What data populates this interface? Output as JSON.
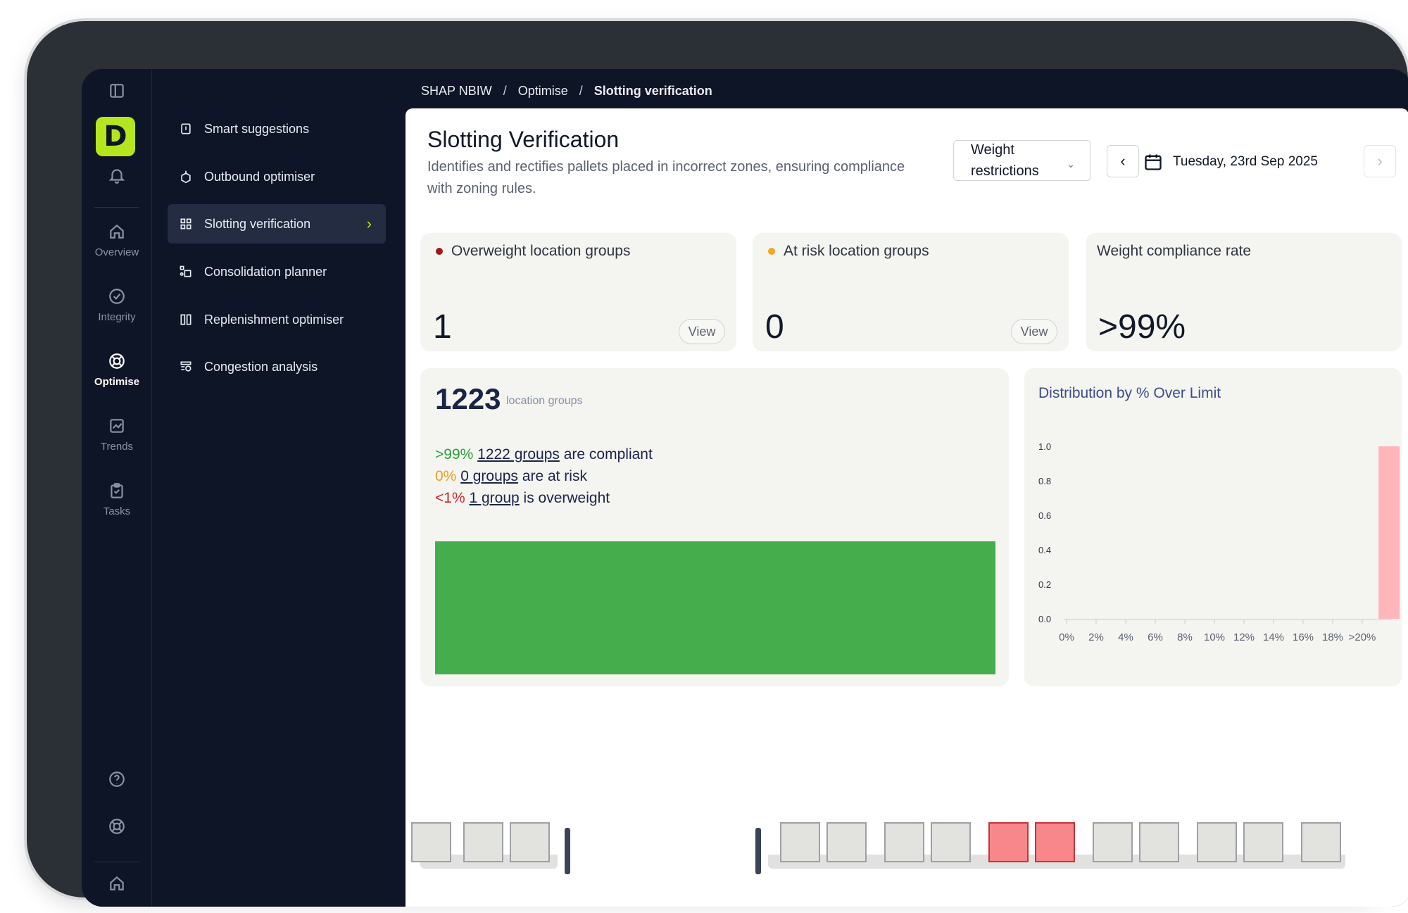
{
  "breadcrumb": {
    "site": "SHAP NBIW",
    "section": "Optimise",
    "current": "Slotting verification",
    "separator": "/"
  },
  "rail": {
    "logo_letter": "D",
    "items": [
      {
        "label": "Overview",
        "icon": "home-icon"
      },
      {
        "label": "Integrity",
        "icon": "check-circle-icon"
      },
      {
        "label": "Optimise",
        "icon": "optimise-icon"
      },
      {
        "label": "Trends",
        "icon": "trend-chart-icon"
      },
      {
        "label": "Tasks",
        "icon": "clipboard-icon"
      }
    ]
  },
  "submenu": {
    "items": [
      {
        "label": "Smart suggestions",
        "icon": "lightbulb-icon"
      },
      {
        "label": "Outbound optimiser",
        "icon": "box-arrow-icon"
      },
      {
        "label": "Slotting verification",
        "icon": "grid-icon",
        "active": true
      },
      {
        "label": "Consolidation planner",
        "icon": "consolidate-icon"
      },
      {
        "label": "Replenishment optimiser",
        "icon": "columns-icon"
      },
      {
        "label": "Congestion analysis",
        "icon": "congestion-icon"
      }
    ]
  },
  "page": {
    "title": "Slotting Verification",
    "subtitle": "Identifies and rectifies pallets placed in incorrect zones, ensuring compliance with zoning rules.",
    "filter_value_line1": "Weight",
    "filter_value_line2": "restrictions",
    "date": "Tuesday, 23rd Sep 2025",
    "prev_glyph": "‹",
    "next_glyph": "›"
  },
  "kpis": {
    "overweight": {
      "label": "Overweight location groups",
      "value": "1",
      "view": "View",
      "dot_color": "#a3161a"
    },
    "at_risk": {
      "label": "At risk location groups",
      "value": "0",
      "view": "View",
      "dot_color": "#f5a623"
    },
    "compliance": {
      "label": "Weight compliance rate",
      "value": ">99%"
    }
  },
  "summary": {
    "total": "1223",
    "unit": "location groups",
    "lines": [
      {
        "pct": ">99%",
        "link": "1222 groups",
        "text": " are compliant"
      },
      {
        "pct": "0%",
        "link": "0 groups",
        "text": " are at risk"
      },
      {
        "pct": "<1%",
        "link": "1 group",
        "text": " is overweight"
      }
    ],
    "bar_fraction": {
      "compliant": 1222,
      "at_risk": 0,
      "overweight": 1
    }
  },
  "chart_data": {
    "type": "bar",
    "title": "Distribution by % Over Limit",
    "categories": [
      "0%",
      "2%",
      "4%",
      "6%",
      "8%",
      "10%",
      "12%",
      "14%",
      "16%",
      "18%",
      ">20%"
    ],
    "y_ticks": [
      "0.0",
      "0.2",
      "0.4",
      "0.6",
      "0.8",
      "1.0"
    ],
    "values": [
      0,
      0,
      0,
      0,
      0,
      0,
      0,
      0,
      0,
      0,
      1
    ],
    "ylim": [
      0,
      1.0
    ],
    "bar_color": "#ffb6bb",
    "grid": false
  },
  "colors": {
    "accent": "#b5e61d",
    "compliant": "#46ad4c",
    "overweight_slot": "#f7878b"
  }
}
